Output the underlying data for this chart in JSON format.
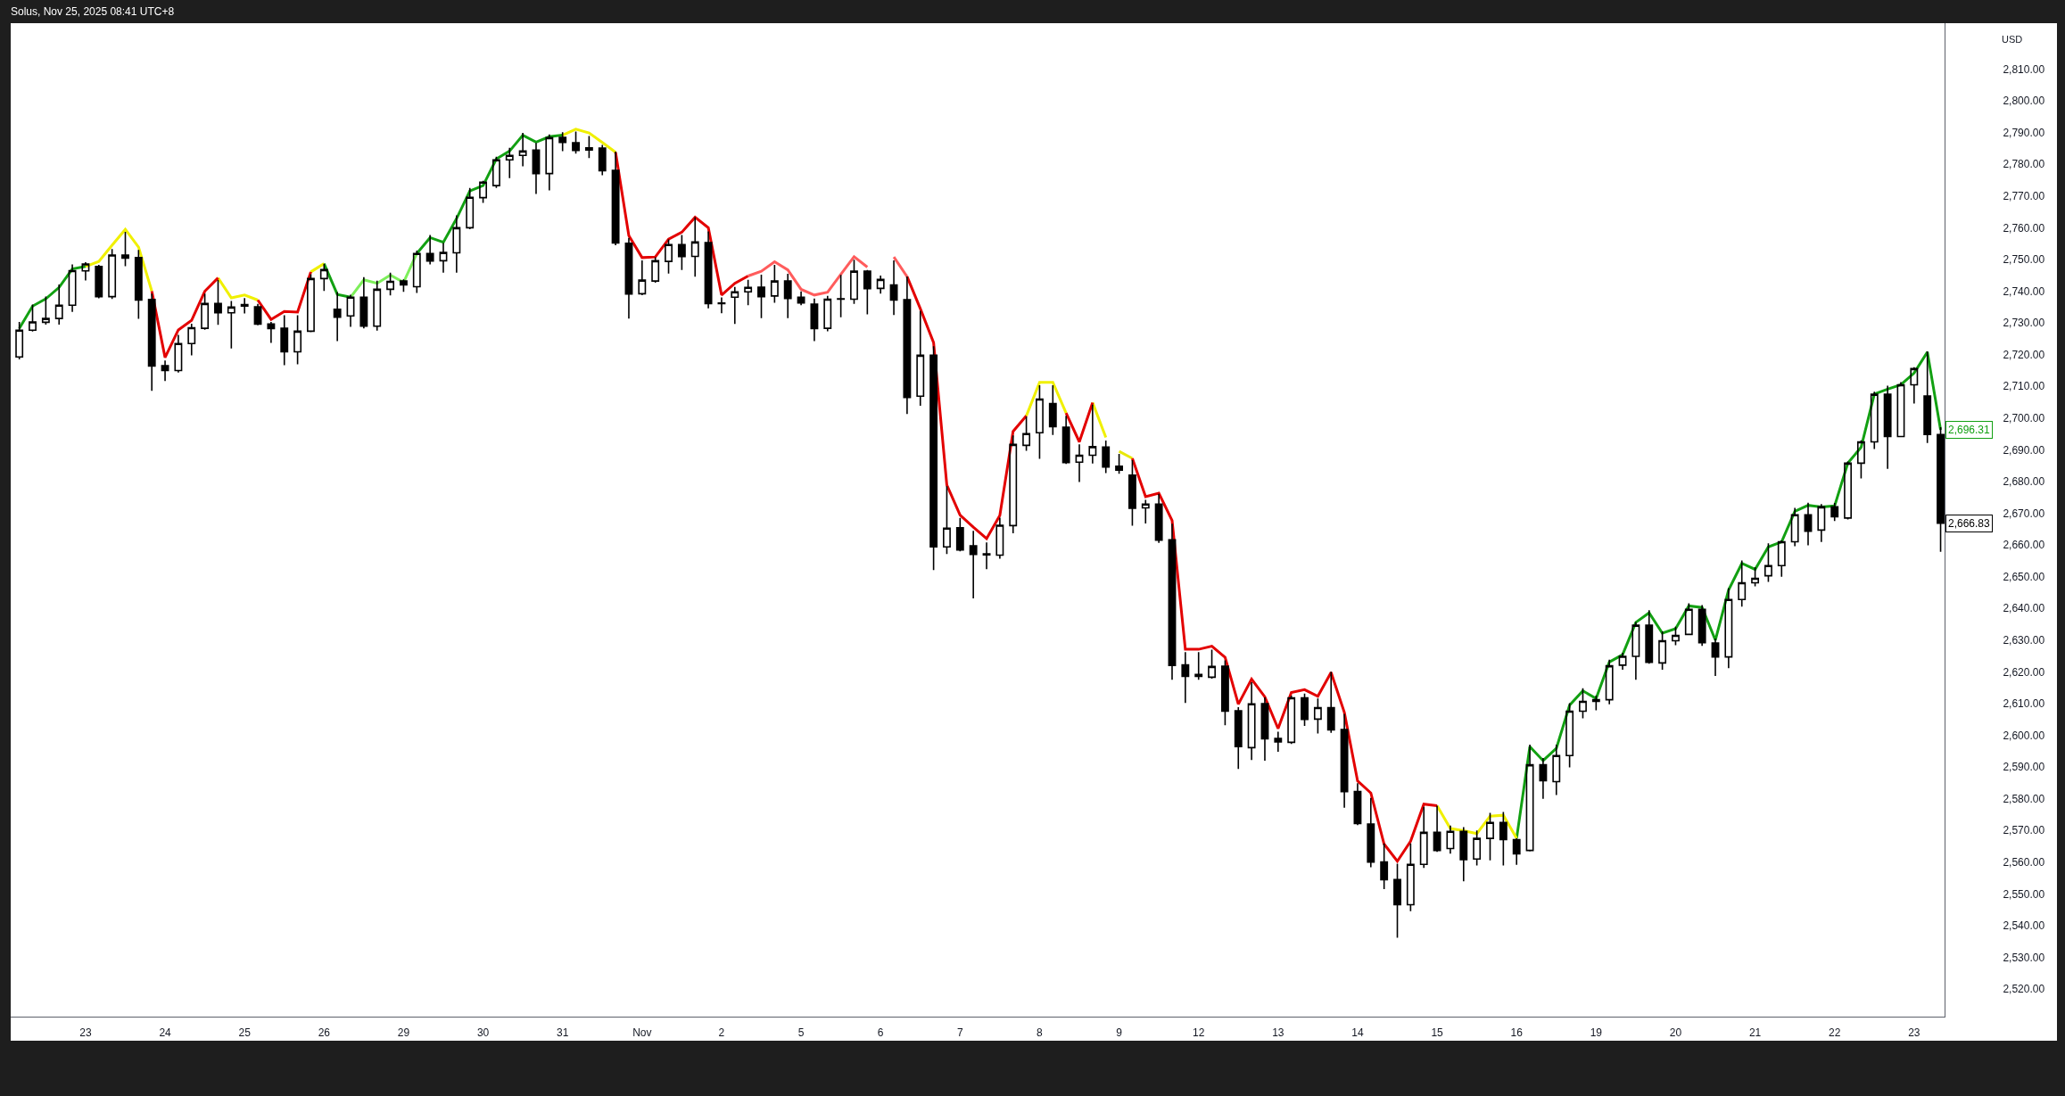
{
  "chart_data": {
    "type": "candlestick",
    "title": "Solus, Nov 25, 2025 08:41 UTC+8",
    "ylabel": "USD",
    "color": "#000000",
    "categories": [
      null,
      null,
      null,
      null,
      null,
      "23",
      null,
      null,
      null,
      null,
      null,
      "24",
      null,
      null,
      null,
      null,
      null,
      "25",
      null,
      null,
      null,
      null,
      null,
      "26",
      null,
      null,
      null,
      null,
      null,
      "29",
      null,
      null,
      null,
      null,
      null,
      "30",
      null,
      null,
      null,
      null,
      null,
      "31",
      null,
      null,
      null,
      null,
      null,
      "Nov",
      null,
      null,
      null,
      null,
      null,
      "2",
      null,
      null,
      null,
      null,
      null,
      "5",
      null,
      null,
      null,
      null,
      null,
      "6",
      null,
      null,
      null,
      null,
      null,
      "7",
      null,
      null,
      null,
      null,
      null,
      "8",
      null,
      null,
      null,
      null,
      null,
      "9",
      null,
      null,
      null,
      null,
      null,
      "12",
      null,
      null,
      null,
      null,
      null,
      "13",
      null,
      null,
      null,
      null,
      null,
      "14",
      null,
      null,
      null,
      null,
      null,
      "15",
      null,
      null,
      null,
      null,
      null,
      "16",
      null,
      null,
      null,
      null,
      null,
      "19",
      null,
      null,
      null,
      null,
      null,
      "20",
      null,
      null,
      null,
      null,
      null,
      "21",
      null,
      null,
      null,
      null,
      null,
      "22",
      null,
      null,
      null,
      null,
      null,
      "23",
      null,
      null
    ],
    "ohlc": [
      [
        2719.3,
        2730.1,
        2718.7,
        2727.7
      ],
      [
        2727.7,
        2735.6,
        2727.5,
        2730.3
      ],
      [
        2730.2,
        2738.1,
        2729.7,
        2731.4
      ],
      [
        2731.4,
        2741.9,
        2729.7,
        2735.6
      ],
      [
        2735.6,
        2748.2,
        2733.7,
        2746.5
      ],
      [
        2746.4,
        2748.9,
        2743.6,
        2748.6
      ],
      [
        2747.8,
        2748.1,
        2738.0,
        2738.3
      ],
      [
        2738.3,
        2753.1,
        2737.8,
        2751.4
      ],
      [
        2751.4,
        2758.5,
        2748.1,
        2750.4
      ],
      [
        2750.6,
        2752.8,
        2731.5,
        2737.2
      ],
      [
        2737.4,
        2739.0,
        2708.8,
        2716.4
      ],
      [
        2716.5,
        2717.9,
        2711.9,
        2715.0
      ],
      [
        2715.0,
        2726.0,
        2714.6,
        2723.5
      ],
      [
        2723.5,
        2729.5,
        2720.0,
        2728.5
      ],
      [
        2728.3,
        2739.0,
        2728.1,
        2736.1
      ],
      [
        2736.1,
        2743.3,
        2729.6,
        2733.2
      ],
      [
        2733.2,
        2736.7,
        2722.2,
        2735.0
      ],
      [
        2735.8,
        2737.6,
        2733.2,
        2735.3
      ],
      [
        2735.1,
        2735.8,
        2729.5,
        2729.6
      ],
      [
        2729.7,
        2730.1,
        2723.9,
        2728.2
      ],
      [
        2728.3,
        2732.2,
        2716.9,
        2720.9
      ],
      [
        2720.9,
        2732.2,
        2717.2,
        2727.4
      ],
      [
        2727.4,
        2745.1,
        2727.3,
        2744.0
      ],
      [
        2744.0,
        2748.4,
        2740.3,
        2746.8
      ],
      [
        2734.3,
        2739.5,
        2724.5,
        2731.8
      ],
      [
        2732.2,
        2738.7,
        2729.0,
        2738.1
      ],
      [
        2738.1,
        2744.2,
        2728.5,
        2729.0
      ],
      [
        2729.0,
        2743.1,
        2727.8,
        2740.6
      ],
      [
        2740.6,
        2745.6,
        2738.9,
        2743.1
      ],
      [
        2743.2,
        2743.5,
        2740.0,
        2742.0
      ],
      [
        2741.4,
        2752.6,
        2739.7,
        2751.9
      ],
      [
        2751.9,
        2757.5,
        2748.7,
        2749.5
      ],
      [
        2749.6,
        2755.0,
        2746.1,
        2752.2
      ],
      [
        2752.1,
        2763.7,
        2746.1,
        2760.0
      ],
      [
        2760.0,
        2772.3,
        2759.8,
        2769.6
      ],
      [
        2769.5,
        2774.6,
        2768.1,
        2774.4
      ],
      [
        2773.3,
        2782.2,
        2772.8,
        2781.4
      ],
      [
        2781.4,
        2785.0,
        2775.9,
        2782.8
      ],
      [
        2782.8,
        2789.7,
        2779.6,
        2784.2
      ],
      [
        2784.5,
        2786.5,
        2770.9,
        2777.1
      ],
      [
        2777.1,
        2789.2,
        2772.0,
        2788.4
      ],
      [
        2788.5,
        2789.9,
        2784.4,
        2786.9
      ],
      [
        2786.8,
        2790.1,
        2783.6,
        2784.4
      ],
      [
        2784.5,
        2788.7,
        2782.2,
        2785.2
      ],
      [
        2785.1,
        2785.9,
        2776.8,
        2778.0
      ],
      [
        2778.1,
        2783.8,
        2754.7,
        2755.2
      ],
      [
        2755.1,
        2756.6,
        2731.6,
        2739.1
      ],
      [
        2739.2,
        2749.5,
        2739.0,
        2743.5
      ],
      [
        2743.2,
        2750.5,
        2742.9,
        2749.6
      ],
      [
        2749.4,
        2756.1,
        2745.8,
        2754.7
      ],
      [
        2754.7,
        2757.5,
        2746.9,
        2750.9
      ],
      [
        2751.0,
        2763.1,
        2744.8,
        2755.5
      ],
      [
        2755.3,
        2758.6,
        2734.8,
        2736.1
      ],
      [
        2736.1,
        2737.8,
        2733.3,
        2736.3
      ],
      [
        2738.1,
        2741.1,
        2729.9,
        2739.8
      ],
      [
        2739.8,
        2743.4,
        2735.8,
        2741.2
      ],
      [
        2741.3,
        2745.0,
        2731.7,
        2738.3
      ],
      [
        2738.5,
        2748.1,
        2736.6,
        2743.2
      ],
      [
        2743.2,
        2745.3,
        2731.7,
        2737.7
      ],
      [
        2738.1,
        2739.7,
        2735.8,
        2736.3
      ],
      [
        2735.9,
        2737.5,
        2724.5,
        2728.2
      ],
      [
        2728.3,
        2738.3,
        2727.6,
        2737.5
      ],
      [
        2737.5,
        2744.9,
        2732.0,
        2737.6
      ],
      [
        2737.5,
        2749.7,
        2736.2,
        2746.3
      ],
      [
        2746.3,
        2746.5,
        2732.9,
        2740.8
      ],
      [
        2740.9,
        2744.7,
        2739.5,
        2743.7
      ],
      [
        2742.0,
        2749.5,
        2732.7,
        2737.2
      ],
      [
        2737.3,
        2744.4,
        2701.5,
        2706.5
      ],
      [
        2706.9,
        2733.6,
        2704.1,
        2719.8
      ],
      [
        2719.8,
        2722.4,
        2652.3,
        2659.4
      ],
      [
        2659.4,
        2678.3,
        2657.4,
        2665.3
      ],
      [
        2665.4,
        2668.3,
        2658.2,
        2658.4
      ],
      [
        2659.7,
        2664.2,
        2643.4,
        2657.0
      ],
      [
        2657.2,
        2660.6,
        2652.6,
        2656.9
      ],
      [
        2656.8,
        2668.4,
        2655.9,
        2666.2
      ],
      [
        2666.1,
        2694.3,
        2663.9,
        2691.7
      ],
      [
        2691.4,
        2700.2,
        2689.9,
        2695.1
      ],
      [
        2695.4,
        2710.1,
        2687.4,
        2706.0
      ],
      [
        2704.6,
        2710.1,
        2694.9,
        2697.3
      ],
      [
        2697.1,
        2700.5,
        2685.8,
        2686.0
      ],
      [
        2686.1,
        2691.5,
        2680.1,
        2688.3
      ],
      [
        2688.3,
        2704.0,
        2685.9,
        2691.0
      ],
      [
        2690.9,
        2692.7,
        2682.9,
        2684.6
      ],
      [
        2684.8,
        2688.5,
        2682.7,
        2683.6
      ],
      [
        2682.0,
        2686.5,
        2666.3,
        2671.6
      ],
      [
        2671.7,
        2674.0,
        2667.0,
        2672.9
      ],
      [
        2672.9,
        2675.9,
        2660.9,
        2661.5
      ],
      [
        2661.6,
        2666.5,
        2617.7,
        2622.0
      ],
      [
        2622.2,
        2626.0,
        2610.4,
        2618.6
      ],
      [
        2618.6,
        2626.0,
        2617.7,
        2619.2
      ],
      [
        2618.3,
        2626.8,
        2618.1,
        2621.7
      ],
      [
        2621.8,
        2623.4,
        2603.4,
        2607.6
      ],
      [
        2607.7,
        2608.6,
        2589.6,
        2596.4
      ],
      [
        2596.1,
        2616.5,
        2592.4,
        2609.9
      ],
      [
        2610.0,
        2611.7,
        2592.2,
        2598.9
      ],
      [
        2599.0,
        2600.9,
        2595.0,
        2597.9
      ],
      [
        2597.8,
        2612.3,
        2597.5,
        2611.8
      ],
      [
        2611.8,
        2612.9,
        2603.2,
        2605.0
      ],
      [
        2605.1,
        2611.4,
        2600.8,
        2608.7
      ],
      [
        2608.7,
        2619.8,
        2601.0,
        2601.7
      ],
      [
        2601.8,
        2606.5,
        2577.4,
        2582.2
      ],
      [
        2582.3,
        2584.7,
        2571.9,
        2572.2
      ],
      [
        2572.0,
        2580.0,
        2558.6,
        2560.0
      ],
      [
        2560.1,
        2565.7,
        2551.7,
        2554.5
      ],
      [
        2554.5,
        2559.3,
        2536.4,
        2546.6
      ],
      [
        2546.6,
        2565.7,
        2544.8,
        2559.3
      ],
      [
        2559.3,
        2577.2,
        2558.4,
        2569.4
      ],
      [
        2569.4,
        2577.6,
        2563.5,
        2563.7
      ],
      [
        2564.3,
        2571.3,
        2562.9,
        2569.7
      ],
      [
        2569.7,
        2570.8,
        2554.2,
        2560.8
      ],
      [
        2561.0,
        2569.8,
        2559.2,
        2567.5
      ],
      [
        2567.5,
        2575.3,
        2560.8,
        2572.5
      ],
      [
        2572.5,
        2575.6,
        2559.2,
        2567.1
      ],
      [
        2567.1,
        2567.3,
        2559.4,
        2562.6
      ],
      [
        2563.7,
        2596.8,
        2563.6,
        2590.7
      ],
      [
        2590.7,
        2592.6,
        2580.2,
        2585.7
      ],
      [
        2585.4,
        2596.8,
        2581.4,
        2593.6
      ],
      [
        2593.6,
        2609.9,
        2590.1,
        2607.6
      ],
      [
        2607.6,
        2614.6,
        2605.6,
        2610.7
      ],
      [
        2610.7,
        2612.3,
        2608.1,
        2611.2
      ],
      [
        2611.2,
        2623.6,
        2610.0,
        2621.9
      ],
      [
        2622.1,
        2625.8,
        2620.9,
        2624.9
      ],
      [
        2624.9,
        2635.5,
        2617.7,
        2634.7
      ],
      [
        2634.7,
        2639.2,
        2622.8,
        2623.0
      ],
      [
        2622.8,
        2632.5,
        2620.9,
        2629.8
      ],
      [
        2629.8,
        2634.0,
        2628.6,
        2631.5
      ],
      [
        2631.8,
        2641.4,
        2631.8,
        2639.7
      ],
      [
        2639.7,
        2640.8,
        2628.4,
        2629.2
      ],
      [
        2629.1,
        2630.3,
        2618.9,
        2624.7
      ],
      [
        2624.7,
        2646.2,
        2621.4,
        2642.8
      ],
      [
        2642.8,
        2654.9,
        2640.8,
        2648.1
      ],
      [
        2648.1,
        2652.8,
        2647.2,
        2649.5
      ],
      [
        2650.3,
        2660.3,
        2648.6,
        2653.5
      ],
      [
        2653.5,
        2661.2,
        2650.2,
        2661.0
      ],
      [
        2661.0,
        2671.5,
        2659.8,
        2669.5
      ],
      [
        2669.5,
        2673.1,
        2660.1,
        2664.3
      ],
      [
        2664.7,
        2672.7,
        2661.2,
        2672.0
      ],
      [
        2672.0,
        2673.0,
        2667.8,
        2668.9
      ],
      [
        2668.5,
        2686.1,
        2668.3,
        2685.8
      ],
      [
        2685.8,
        2692.8,
        2681.2,
        2692.5
      ],
      [
        2692.5,
        2708.1,
        2690.5,
        2707.5
      ],
      [
        2707.5,
        2710.0,
        2684.2,
        2694.2
      ],
      [
        2694.2,
        2711.1,
        2694.2,
        2710.5
      ],
      [
        2710.5,
        2715.8,
        2704.8,
        2715.6
      ],
      [
        2707.0,
        2720.8,
        2692.4,
        2694.8
      ],
      [
        2694.8,
        2696.9,
        2658.1,
        2666.83
      ]
    ],
    "value_labels": [
      null,
      null,
      null,
      null,
      null,
      null,
      null,
      null,
      null,
      null,
      null,
      null,
      null,
      null,
      null,
      null,
      null,
      null,
      null,
      null,
      null,
      null,
      null,
      null,
      null,
      null,
      null,
      null,
      null,
      null,
      null,
      null,
      null,
      null,
      null,
      null,
      null,
      null,
      null,
      null,
      null,
      null,
      null,
      null,
      null,
      null,
      null,
      null,
      null,
      null,
      null,
      null,
      null,
      null,
      null,
      null,
      null,
      null,
      null,
      null,
      null,
      null,
      null,
      null,
      null,
      null,
      null,
      null,
      null,
      null,
      null,
      null,
      null,
      null,
      null,
      null,
      null,
      null,
      null,
      null,
      null,
      null,
      null,
      null,
      null,
      null,
      null,
      null,
      null,
      null,
      null,
      null,
      null,
      null,
      null,
      null,
      null,
      null,
      null,
      null,
      null,
      null,
      null,
      null,
      null,
      null,
      null,
      null,
      null,
      null,
      null,
      null,
      null,
      null,
      null,
      null,
      null,
      null,
      null,
      null,
      null,
      null,
      null,
      null,
      null,
      null,
      null,
      null,
      null,
      null,
      null,
      null,
      null,
      null,
      null,
      null,
      null,
      null,
      null,
      null,
      null,
      null,
      null,
      null,
      null,
      "2,666.83"
    ],
    "series": [
      {
        "type": "line",
        "color": "#12a012",
        "values": [
          2728.3,
          2735.3,
          2737.6,
          2741.2,
          2747.0,
          2747.8,
          null,
          null,
          null,
          null,
          null,
          null,
          null,
          null,
          null,
          null,
          null,
          null,
          null,
          null,
          null,
          null,
          null,
          2748.7,
          2739.0,
          2738.1,
          null,
          null,
          null,
          null,
          2751.9,
          2756.9,
          2755.4,
          2762.9,
          2771.6,
          2773.3,
          2781.7,
          2784.2,
          2789.2,
          2787.0,
          2788.7,
          2789.2,
          null,
          null,
          null,
          null,
          null,
          null,
          null,
          null,
          null,
          null,
          null,
          null,
          null,
          null,
          null,
          null,
          null,
          null,
          null,
          null,
          null,
          null,
          null,
          null,
          null,
          null,
          null,
          null,
          null,
          null,
          null,
          null,
          null,
          null,
          null,
          null,
          null,
          null,
          null,
          null,
          null,
          null,
          null,
          null,
          null,
          null,
          null,
          null,
          null,
          null,
          null,
          null,
          null,
          null,
          null,
          null,
          null,
          null,
          null,
          null,
          null,
          null,
          null,
          null,
          null,
          null,
          null,
          null,
          null,
          null,
          null,
          2567.5,
          2596.4,
          2592.0,
          2595.9,
          2609.5,
          2614.0,
          2611.6,
          2623.1,
          2625.4,
          2635.6,
          2638.6,
          2632.2,
          2633.6,
          2640.8,
          2640.3,
          2630.0,
          2645.8,
          2654.2,
          2652.3,
          2659.4,
          2661.0,
          2670.6,
          2672.5,
          2672.0,
          2672.3,
          2685.8,
          2690.8,
          2707.6,
          2709.1,
          2710.5,
          2714.2,
          2720.8,
          2696.31
        ],
        "value_labels": [
          null,
          null,
          null,
          null,
          null,
          null,
          null,
          null,
          null,
          null,
          null,
          null,
          null,
          null,
          null,
          null,
          null,
          null,
          null,
          null,
          null,
          null,
          null,
          null,
          null,
          null,
          null,
          null,
          null,
          null,
          null,
          null,
          null,
          null,
          null,
          null,
          null,
          null,
          null,
          null,
          null,
          null,
          null,
          null,
          null,
          null,
          null,
          null,
          null,
          null,
          null,
          null,
          null,
          null,
          null,
          null,
          null,
          null,
          null,
          null,
          null,
          null,
          null,
          null,
          null,
          null,
          null,
          null,
          null,
          null,
          null,
          null,
          null,
          null,
          null,
          null,
          null,
          null,
          null,
          null,
          null,
          null,
          null,
          null,
          null,
          null,
          null,
          null,
          null,
          null,
          null,
          null,
          null,
          null,
          null,
          null,
          null,
          null,
          null,
          null,
          null,
          null,
          null,
          null,
          null,
          null,
          null,
          null,
          null,
          null,
          null,
          null,
          null,
          null,
          null,
          null,
          null,
          null,
          null,
          null,
          null,
          null,
          null,
          null,
          null,
          null,
          null,
          null,
          null,
          null,
          null,
          null,
          null,
          null,
          null,
          null,
          null,
          null,
          null,
          null,
          null,
          null,
          null,
          null,
          null,
          "2,696.31"
        ]
      },
      {
        "type": "line",
        "color": "#f0f000",
        "values": [
          null,
          null,
          null,
          null,
          null,
          2747.8,
          2749.4,
          2754.5,
          2759.5,
          2753.9,
          2740.0,
          null,
          null,
          null,
          null,
          2744.2,
          2737.9,
          2738.8,
          2737.2,
          null,
          null,
          null,
          2746.1,
          2748.7,
          null,
          null,
          null,
          null,
          null,
          null,
          null,
          null,
          null,
          null,
          null,
          null,
          null,
          null,
          null,
          null,
          null,
          2789.2,
          2791.1,
          2789.9,
          2786.9,
          2783.8,
          null,
          null,
          null,
          null,
          null,
          null,
          null,
          null,
          null,
          null,
          null,
          null,
          null,
          null,
          null,
          null,
          null,
          null,
          null,
          null,
          null,
          null,
          null,
          null,
          null,
          null,
          null,
          null,
          null,
          null,
          2700.7,
          2711.3,
          2711.3,
          2701.6,
          null,
          2704.9,
          2693.9,
          null,
          null,
          null,
          null,
          null,
          null,
          null,
          null,
          null,
          null,
          null,
          null,
          null,
          null,
          null,
          null,
          null,
          null,
          null,
          null,
          null,
          null,
          null,
          null,
          2577.8,
          2570.6,
          2569.9,
          2569.0,
          2574.5,
          2574.8,
          2567.5,
          null,
          null,
          null,
          null,
          null,
          null,
          null,
          null,
          null,
          null,
          null,
          null,
          null,
          null,
          null,
          null,
          null,
          null,
          null,
          null,
          null,
          null,
          null,
          null,
          null,
          null,
          null,
          null,
          null,
          null,
          null,
          null
        ]
      },
      {
        "type": "line",
        "color": "#e8e80a",
        "values": [
          null,
          null,
          null,
          null,
          null,
          null,
          null,
          null,
          null,
          null,
          null,
          null,
          null,
          null,
          null,
          null,
          null,
          null,
          null,
          null,
          null,
          null,
          null,
          null,
          null,
          null,
          null,
          null,
          null,
          null,
          null,
          null,
          null,
          null,
          null,
          null,
          null,
          null,
          null,
          null,
          null,
          null,
          null,
          null,
          null,
          null,
          null,
          null,
          null,
          null,
          null,
          null,
          null,
          null,
          null,
          null,
          null,
          null,
          null,
          null,
          null,
          null,
          null,
          null,
          null,
          null,
          null,
          null,
          null,
          null,
          null,
          null,
          null,
          null,
          null,
          null,
          null,
          null,
          null,
          null,
          null,
          null,
          null,
          2689.5,
          2687.3,
          null,
          null,
          null,
          null,
          null,
          null,
          null,
          null,
          null,
          null,
          null,
          null,
          null,
          null,
          null,
          null,
          null,
          null,
          null,
          null,
          null,
          null,
          null,
          null,
          null,
          null,
          null,
          null,
          null,
          null,
          null,
          null,
          null,
          null,
          null,
          null,
          null,
          null,
          null,
          null,
          null,
          null,
          null,
          null,
          null,
          null,
          null,
          null,
          null,
          null,
          null,
          null,
          null,
          null,
          null,
          null,
          null,
          null,
          null,
          null,
          null
        ]
      },
      {
        "type": "line",
        "color": "#e30000",
        "values": [
          null,
          null,
          null,
          null,
          null,
          null,
          null,
          null,
          null,
          null,
          2740.0,
          2719.1,
          2727.8,
          2730.8,
          2740.0,
          2744.2,
          null,
          null,
          2737.2,
          2731.1,
          2733.6,
          2733.4,
          2746.1,
          null,
          null,
          null,
          null,
          null,
          null,
          null,
          null,
          null,
          null,
          null,
          null,
          null,
          null,
          null,
          null,
          null,
          null,
          null,
          null,
          null,
          null,
          2783.8,
          2757.5,
          2750.6,
          2750.8,
          2756.4,
          2758.6,
          2763.3,
          2760.0,
          2738.8,
          2742.5,
          2744.8,
          null,
          null,
          null,
          null,
          null,
          null,
          null,
          null,
          null,
          null,
          null,
          2744.6,
          2734.5,
          2723.8,
          2678.9,
          2669.4,
          2665.6,
          2662.0,
          2669.3,
          2695.8,
          2700.7,
          null,
          null,
          2701.6,
          2692.5,
          2704.9,
          null,
          null,
          2687.3,
          2675.2,
          2676.3,
          2667.7,
          2627.1,
          2627.1,
          2628.1,
          2624.6,
          2609.8,
          2617.7,
          2612.1,
          2602.1,
          2613.5,
          2614.4,
          2612.3,
          2619.8,
          2607.2,
          2585.6,
          2581.8,
          2565.7,
          2560.3,
          2566.6,
          2578.3,
          2577.8,
          null,
          null,
          null,
          null,
          null,
          null,
          null,
          null,
          null,
          null,
          null,
          null,
          null,
          null,
          null,
          null,
          null,
          null,
          null,
          null,
          null,
          null,
          null,
          null,
          null,
          null,
          null,
          null,
          null,
          null,
          null,
          null,
          null,
          null,
          null,
          null,
          null,
          null
        ]
      },
      {
        "type": "line",
        "color": "#ff5c5c",
        "values": [
          null,
          null,
          null,
          null,
          null,
          null,
          null,
          null,
          null,
          null,
          null,
          null,
          null,
          null,
          null,
          null,
          null,
          null,
          null,
          null,
          null,
          null,
          null,
          null,
          null,
          null,
          null,
          null,
          null,
          null,
          null,
          null,
          null,
          null,
          null,
          null,
          null,
          null,
          null,
          null,
          null,
          null,
          null,
          null,
          null,
          null,
          null,
          null,
          null,
          null,
          null,
          null,
          null,
          null,
          null,
          2744.8,
          2746.3,
          2749.3,
          2746.7,
          2740.6,
          2738.8,
          2739.7,
          2745.3,
          2750.9,
          2747.6,
          null,
          2750.8,
          2744.6,
          null,
          null,
          null,
          null,
          null,
          null,
          null,
          null,
          null,
          null,
          null,
          null,
          null,
          null,
          null,
          null,
          null,
          null,
          null,
          null,
          null,
          null,
          null,
          null,
          null,
          null,
          null,
          null,
          null,
          null,
          null,
          null,
          null,
          null,
          null,
          null,
          null,
          null,
          null,
          null,
          null,
          null,
          null,
          null,
          null,
          null,
          null,
          null,
          null,
          null,
          null,
          null,
          null,
          null,
          null,
          null,
          null,
          null,
          null,
          null,
          null,
          null,
          null,
          null,
          null,
          null,
          null,
          null,
          null,
          null,
          null,
          null,
          null,
          null,
          null,
          null,
          null,
          null
        ]
      },
      {
        "type": "line",
        "color": "#7def5a",
        "values": [
          null,
          null,
          null,
          null,
          null,
          null,
          null,
          null,
          null,
          null,
          null,
          null,
          null,
          null,
          null,
          null,
          null,
          null,
          null,
          null,
          null,
          null,
          null,
          null,
          null,
          2738.1,
          2743.6,
          2742.5,
          2745.1,
          2742.8,
          2751.9,
          null,
          null,
          null,
          null,
          null,
          null,
          null,
          null,
          null,
          null,
          null,
          null,
          null,
          null,
          null,
          null,
          null,
          null,
          null,
          null,
          null,
          null,
          null,
          null,
          null,
          null,
          null,
          null,
          null,
          null,
          null,
          null,
          null,
          null,
          null,
          null,
          null,
          null,
          null,
          null,
          null,
          null,
          null,
          null,
          null,
          null,
          null,
          null,
          null,
          null,
          null,
          null,
          null,
          null,
          null,
          null,
          null,
          null,
          null,
          null,
          null,
          null,
          null,
          null,
          null,
          null,
          null,
          null,
          null,
          null,
          null,
          null,
          null,
          null,
          null,
          null,
          null,
          null,
          null,
          null,
          null,
          null,
          null,
          null,
          null,
          null,
          null,
          null,
          null,
          null,
          null,
          null,
          null,
          null,
          null,
          null,
          null,
          null,
          null,
          null,
          null,
          null,
          null,
          null,
          null,
          null,
          null,
          null,
          null,
          null,
          null,
          null,
          null,
          null,
          null
        ]
      }
    ],
    "ylim": [
      2511.3,
      2824.5
    ],
    "yticks": [
      {
        "value": 2520,
        "label": "2,520.00"
      },
      {
        "value": 2530,
        "label": "2,530.00"
      },
      {
        "value": 2540,
        "label": "2,540.00"
      },
      {
        "value": 2550,
        "label": "2,550.00"
      },
      {
        "value": 2560,
        "label": "2,560.00"
      },
      {
        "value": 2570,
        "label": "2,570.00"
      },
      {
        "value": 2580,
        "label": "2,580.00"
      },
      {
        "value": 2590,
        "label": "2,590.00"
      },
      {
        "value": 2600,
        "label": "2,600.00"
      },
      {
        "value": 2610,
        "label": "2,610.00"
      },
      {
        "value": 2620,
        "label": "2,620.00"
      },
      {
        "value": 2630,
        "label": "2,630.00"
      },
      {
        "value": 2640,
        "label": "2,640.00"
      },
      {
        "value": 2650,
        "label": "2,650.00"
      },
      {
        "value": 2660,
        "label": "2,660.00"
      },
      {
        "value": 2670,
        "label": "2,670.00"
      },
      {
        "value": 2680,
        "label": "2,680.00"
      },
      {
        "value": 2690,
        "label": "2,690.00"
      },
      {
        "value": 2700,
        "label": "2,700.00"
      },
      {
        "value": 2710,
        "label": "2,710.00"
      },
      {
        "value": 2720,
        "label": "2,720.00"
      },
      {
        "value": 2730,
        "label": "2,730.00"
      },
      {
        "value": 2740,
        "label": "2,740.00"
      },
      {
        "value": 2750,
        "label": "2,750.00"
      },
      {
        "value": 2760,
        "label": "2,760.00"
      },
      {
        "value": 2770,
        "label": "2,770.00"
      },
      {
        "value": 2780,
        "label": "2,780.00"
      },
      {
        "value": 2790,
        "label": "2,790.00"
      },
      {
        "value": 2800,
        "label": "2,800.00"
      },
      {
        "value": 2810,
        "label": "2,810.00"
      }
    ]
  }
}
